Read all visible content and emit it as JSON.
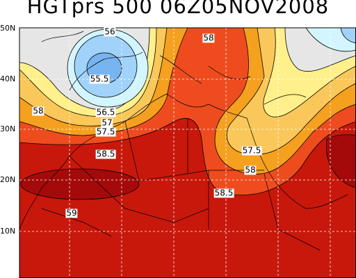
{
  "header": {
    "title": "HGTprs 500 06Z05NOV2008"
  },
  "latitude_labels": [
    "50N",
    "40N",
    "30N",
    "20N",
    "10N"
  ],
  "contour_labels": [
    "56",
    "55.5",
    "56.5",
    "57",
    "57.5",
    "58",
    "58.5",
    "59",
    "58",
    "57.5",
    "58",
    "58.5"
  ]
}
